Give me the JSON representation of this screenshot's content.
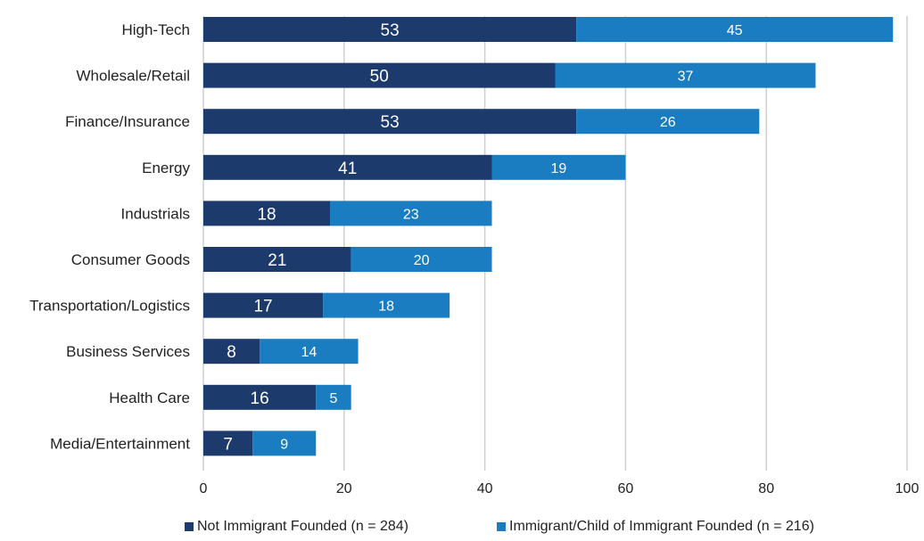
{
  "chart_data": {
    "type": "bar",
    "orientation": "horizontal",
    "stacked": true,
    "categories": [
      "High-Tech",
      "Wholesale/Retail",
      "Finance/Insurance",
      "Energy",
      "Industrials",
      "Consumer Goods",
      "Transportation/Logistics",
      "Business Services",
      "Health Care",
      "Media/Entertainment"
    ],
    "series": [
      {
        "name": "Not Immigrant Founded (n = 284)",
        "color": "#1c3a6b",
        "values": [
          53,
          50,
          53,
          41,
          18,
          21,
          17,
          8,
          16,
          7
        ]
      },
      {
        "name": "Immigrant/Child of Immigrant Founded (n = 216)",
        "color": "#1a7cc1",
        "values": [
          45,
          37,
          26,
          19,
          23,
          20,
          18,
          14,
          5,
          9
        ]
      }
    ],
    "xlim": [
      0,
      100
    ],
    "xticks": [
      0,
      20,
      40,
      60,
      80,
      100
    ],
    "grid": "vertical",
    "legend_position": "bottom"
  }
}
